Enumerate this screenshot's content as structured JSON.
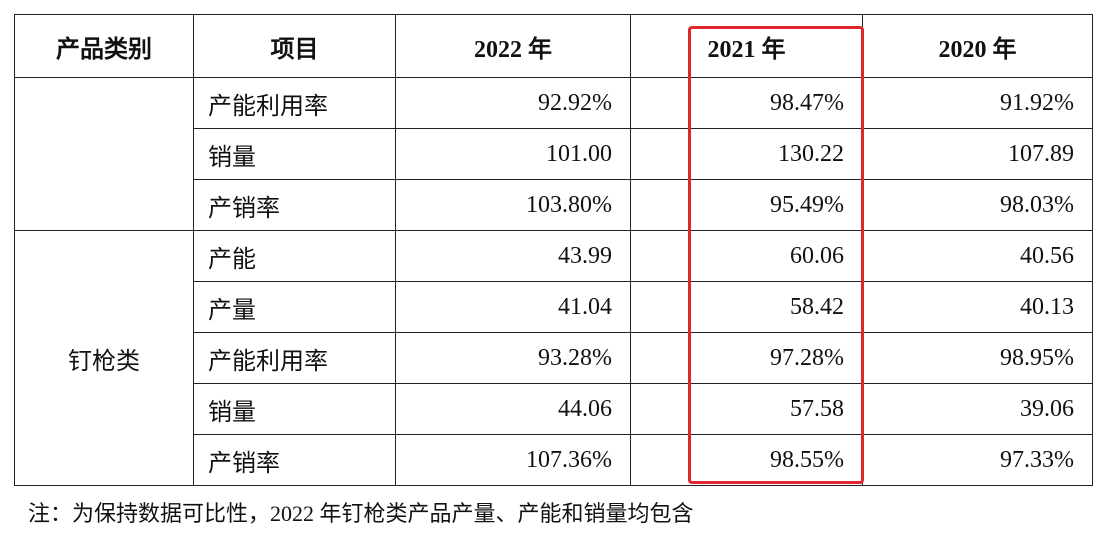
{
  "table": {
    "header": [
      "产品类别",
      "项目",
      "2022 年",
      "2021 年",
      "2020 年"
    ],
    "groups": [
      {
        "rows": [
          {
            "item": "产能利用率",
            "values": [
              "92.92%",
              "98.47%",
              "91.92%"
            ]
          },
          {
            "item": "销量",
            "values": [
              "101.00",
              "130.22",
              "107.89"
            ]
          },
          {
            "item": "产销率",
            "values": [
              "103.80%",
              "95.49%",
              "98.03%"
            ]
          }
        ]
      },
      {
        "category": "钉枪类",
        "rows": [
          {
            "item": "产能",
            "values": [
              "43.99",
              "60.06",
              "40.56"
            ]
          },
          {
            "item": "产量",
            "values": [
              "41.04",
              "58.42",
              "40.13"
            ]
          },
          {
            "item": "产能利用率",
            "values": [
              "93.28%",
              "97.28%",
              "98.95%"
            ]
          },
          {
            "item": "销量",
            "values": [
              "44.06",
              "57.58",
              "39.06"
            ]
          },
          {
            "item": "产销率",
            "values": [
              "107.36%",
              "98.55%",
              "97.33%"
            ]
          }
        ]
      }
    ]
  },
  "note": "注：为保持数据可比性，2022 年钉枪类产品产量、产能和销量均包含"
}
